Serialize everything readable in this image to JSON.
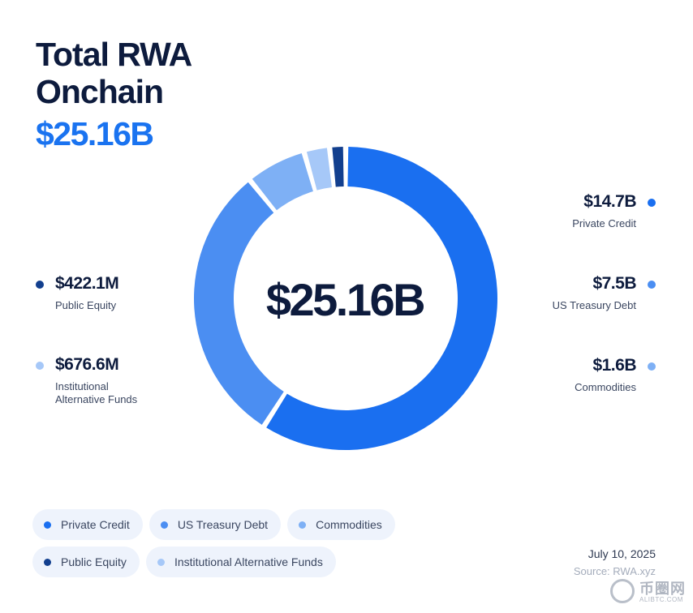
{
  "header": {
    "title_line1": "Total RWA",
    "title_line2": "Onchain",
    "total": "$25.16B"
  },
  "chart_data": {
    "type": "pie",
    "variant": "donut",
    "title": "Total RWA Onchain",
    "center_label": "$25.16B",
    "unit": "USD",
    "series": [
      {
        "name": "Private Credit",
        "value_label": "$14.7B",
        "value": 14.7,
        "color": "#1a6ff0"
      },
      {
        "name": "US Treasury Debt",
        "value_label": "$7.5B",
        "value": 7.5,
        "color": "#4b8ef2"
      },
      {
        "name": "Commodities",
        "value_label": "$1.6B",
        "value": 1.6,
        "color": "#7eb0f5"
      },
      {
        "name": "Institutional Alternative Funds",
        "value_label": "$676.6M",
        "value": 0.6766,
        "color": "#a6c8f8"
      },
      {
        "name": "Public Equity",
        "value_label": "$422.1M",
        "value": 0.4221,
        "color": "#123f8e"
      }
    ]
  },
  "callouts": {
    "private_credit": {
      "value": "$14.7B",
      "label": "Private Credit"
    },
    "us_treasury": {
      "value": "$7.5B",
      "label": "US Treasury Debt"
    },
    "commodities": {
      "value": "$1.6B",
      "label": "Commodities"
    },
    "public_equity": {
      "value": "$422.1M",
      "label": "Public Equity"
    },
    "institutional": {
      "value": "$676.6M",
      "label_line1": "Institutional",
      "label_line2": "Alternative Funds"
    }
  },
  "legend": {
    "items": [
      {
        "label": "Private Credit",
        "color": "#1a6ff0"
      },
      {
        "label": "US Treasury Debt",
        "color": "#4b8ef2"
      },
      {
        "label": "Commodities",
        "color": "#7eb0f5"
      },
      {
        "label": "Public Equity",
        "color": "#123f8e"
      },
      {
        "label": "Institutional Alternative Funds",
        "color": "#a6c8f8"
      }
    ]
  },
  "footer": {
    "date": "July 10, 2025",
    "source": "Source: RWA.xyz"
  },
  "watermark": {
    "text": "币圈网",
    "url": "ALIBTC.COM"
  }
}
